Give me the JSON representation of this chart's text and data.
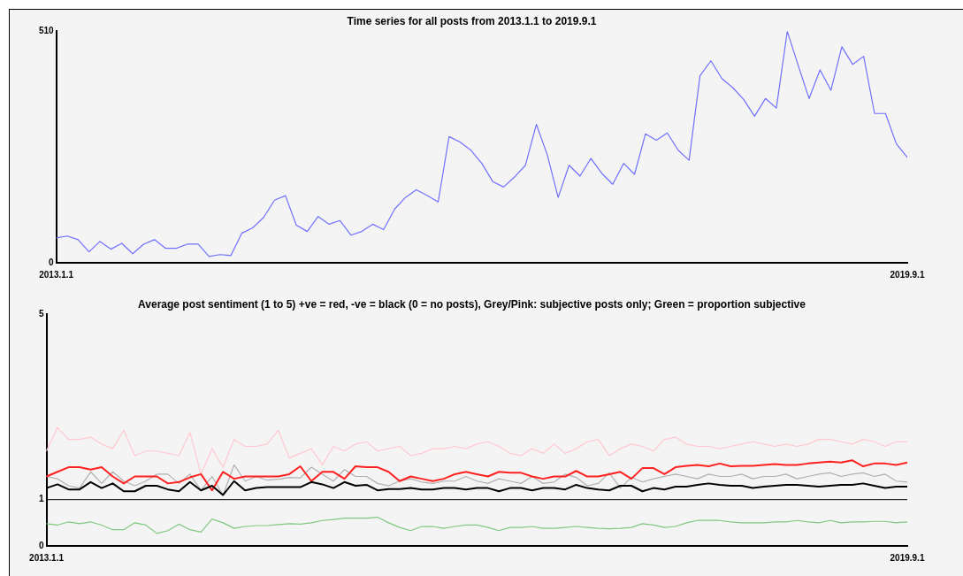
{
  "chart_data": [
    {
      "type": "line",
      "title": "Time series for all posts from 2013.1.1 to 2019.9.1",
      "categories": [
        "2013.1.1",
        null,
        null,
        null,
        null,
        null,
        null,
        null,
        null,
        null,
        null,
        null,
        null,
        null,
        null,
        null,
        null,
        null,
        null,
        null,
        null,
        null,
        null,
        null,
        null,
        null,
        null,
        null,
        null,
        null,
        null,
        null,
        null,
        null,
        null,
        null,
        null,
        null,
        null,
        null,
        null,
        null,
        null,
        null,
        null,
        null,
        null,
        null,
        null,
        null,
        null,
        null,
        null,
        null,
        null,
        null,
        null,
        null,
        null,
        null,
        null,
        null,
        null,
        null,
        null,
        null,
        null,
        null,
        null,
        null,
        null,
        null,
        null,
        null,
        null,
        null,
        null,
        null,
        "2019.9.1"
      ],
      "series": [
        {
          "color": "#7070ff",
          "values": [
            55,
            59,
            51,
            24,
            47,
            30,
            43,
            20,
            41,
            51,
            32,
            32,
            41,
            41,
            14,
            18,
            16,
            65,
            77,
            100,
            138,
            148,
            83,
            69,
            102,
            85,
            93,
            61,
            69,
            85,
            73,
            118,
            144,
            161,
            148,
            134,
            278,
            266,
            248,
            219,
            179,
            167,
            189,
            215,
            305,
            238,
            144,
            215,
            191,
            230,
            197,
            173,
            219,
            195,
            284,
            270,
            286,
            248,
            226,
            412,
            445,
            406,
            386,
            360,
            323,
            362,
            341,
            510,
            435,
            362,
            425,
            380,
            476,
            437,
            455,
            329,
            329,
            262,
            232
          ]
        }
      ],
      "ylim": [
        0,
        510
      ],
      "yticks": [
        0,
        510
      ],
      "grid": false,
      "legend": false,
      "marker": "none",
      "line_style": "solid"
    },
    {
      "type": "line",
      "title": "Average post sentiment (1 to 5) +ve = red, -ve = black (0 = no posts), Grey/Pink: subjective posts only; Green = proportion subjective",
      "categories": [
        "2013.1.1",
        null,
        null,
        null,
        null,
        null,
        null,
        null,
        null,
        null,
        null,
        null,
        null,
        null,
        null,
        null,
        null,
        null,
        null,
        null,
        null,
        null,
        null,
        null,
        null,
        null,
        null,
        null,
        null,
        null,
        null,
        null,
        null,
        null,
        null,
        null,
        null,
        null,
        null,
        null,
        null,
        null,
        null,
        null,
        null,
        null,
        null,
        null,
        null,
        null,
        null,
        null,
        null,
        null,
        null,
        null,
        null,
        null,
        null,
        null,
        null,
        null,
        null,
        null,
        null,
        null,
        null,
        null,
        null,
        null,
        null,
        null,
        null,
        null,
        null,
        null,
        null,
        null,
        "2019.9.1"
      ],
      "series": [
        {
          "color": "#ffc8d0",
          "values": [
            2.05,
            2.56,
            2.3,
            2.3,
            2.35,
            2.2,
            2.1,
            2.5,
            1.95,
            2.05,
            2.05,
            2.0,
            1.95,
            2.45,
            1.55,
            2.1,
            1.7,
            2.3,
            2.15,
            2.15,
            2.2,
            2.5,
            1.9,
            2.0,
            2.1,
            1.75,
            2.15,
            2.05,
            2.2,
            2.25,
            2.05,
            2.1,
            2.15,
            1.95,
            2.0,
            2.1,
            2.1,
            2.15,
            2.1,
            2.2,
            2.25,
            2.15,
            2.0,
            1.95,
            2.1,
            2.0,
            2.2,
            2.0,
            2.1,
            2.25,
            2.3,
            1.95,
            2.1,
            2.2,
            2.15,
            2.05,
            2.3,
            2.35,
            2.2,
            2.15,
            2.15,
            2.1,
            2.15,
            2.2,
            2.25,
            2.2,
            2.15,
            2.2,
            2.15,
            2.2,
            2.3,
            2.3,
            2.25,
            2.2,
            2.3,
            2.25,
            2.15,
            2.25,
            2.25
          ]
        },
        {
          "color": "#b0b0b0",
          "values": [
            1.5,
            1.45,
            1.3,
            1.25,
            1.6,
            1.35,
            1.6,
            1.4,
            1.3,
            1.4,
            1.55,
            1.55,
            1.35,
            1.55,
            1.2,
            1.5,
            1.1,
            1.75,
            1.4,
            1.5,
            1.42,
            1.44,
            1.48,
            1.47,
            1.7,
            1.55,
            1.4,
            1.65,
            1.5,
            1.5,
            1.35,
            1.3,
            1.4,
            1.45,
            1.38,
            1.35,
            1.4,
            1.4,
            1.5,
            1.4,
            1.35,
            1.45,
            1.4,
            1.35,
            1.5,
            1.35,
            1.38,
            1.55,
            1.48,
            1.3,
            1.35,
            1.58,
            1.25,
            1.48,
            1.38,
            1.45,
            1.5,
            1.55,
            1.5,
            1.45,
            1.55,
            1.5,
            1.5,
            1.55,
            1.45,
            1.5,
            1.5,
            1.55,
            1.45,
            1.5,
            1.55,
            1.58,
            1.5,
            1.55,
            1.58,
            1.5,
            1.55,
            1.4,
            1.38
          ]
        },
        {
          "color": "#ff2020",
          "values": [
            1.5,
            1.6,
            1.7,
            1.7,
            1.65,
            1.7,
            1.5,
            1.35,
            1.5,
            1.5,
            1.5,
            1.35,
            1.38,
            1.48,
            1.55,
            1.2,
            1.6,
            1.45,
            1.5,
            1.5,
            1.5,
            1.5,
            1.55,
            1.72,
            1.4,
            1.6,
            1.6,
            1.45,
            1.72,
            1.7,
            1.7,
            1.6,
            1.4,
            1.5,
            1.45,
            1.4,
            1.45,
            1.55,
            1.6,
            1.55,
            1.5,
            1.6,
            1.58,
            1.58,
            1.5,
            1.45,
            1.5,
            1.5,
            1.62,
            1.5,
            1.5,
            1.55,
            1.6,
            1.45,
            1.68,
            1.68,
            1.55,
            1.7,
            1.73,
            1.75,
            1.72,
            1.78,
            1.72,
            1.73,
            1.73,
            1.75,
            1.77,
            1.75,
            1.75,
            1.78,
            1.8,
            1.82,
            1.8,
            1.85,
            1.72,
            1.78,
            1.78,
            1.75,
            1.8
          ]
        },
        {
          "color": "#000000",
          "values": [
            1.25,
            1.33,
            1.22,
            1.22,
            1.38,
            1.25,
            1.35,
            1.18,
            1.18,
            1.3,
            1.3,
            1.22,
            1.18,
            1.38,
            1.2,
            1.3,
            1.1,
            1.4,
            1.2,
            1.25,
            1.27,
            1.27,
            1.27,
            1.27,
            1.38,
            1.33,
            1.25,
            1.38,
            1.3,
            1.32,
            1.2,
            1.23,
            1.23,
            1.25,
            1.22,
            1.22,
            1.25,
            1.25,
            1.22,
            1.25,
            1.25,
            1.18,
            1.25,
            1.25,
            1.2,
            1.25,
            1.25,
            1.22,
            1.32,
            1.25,
            1.22,
            1.2,
            1.3,
            1.3,
            1.18,
            1.25,
            1.22,
            1.28,
            1.28,
            1.32,
            1.35,
            1.32,
            1.3,
            1.3,
            1.25,
            1.28,
            1.3,
            1.32,
            1.32,
            1.3,
            1.28,
            1.3,
            1.32,
            1.32,
            1.35,
            1.3,
            1.25,
            1.28,
            1.28
          ]
        },
        {
          "color": "#80c880",
          "values": [
            0.48,
            0.45,
            0.52,
            0.48,
            0.52,
            0.45,
            0.35,
            0.35,
            0.5,
            0.45,
            0.27,
            0.33,
            0.47,
            0.35,
            0.3,
            0.58,
            0.5,
            0.38,
            0.42,
            0.44,
            0.44,
            0.46,
            0.48,
            0.47,
            0.5,
            0.55,
            0.57,
            0.6,
            0.6,
            0.6,
            0.62,
            0.5,
            0.4,
            0.33,
            0.42,
            0.42,
            0.38,
            0.42,
            0.45,
            0.45,
            0.4,
            0.33,
            0.4,
            0.4,
            0.42,
            0.38,
            0.38,
            0.4,
            0.42,
            0.4,
            0.38,
            0.37,
            0.38,
            0.4,
            0.48,
            0.45,
            0.4,
            0.42,
            0.5,
            0.55,
            0.55,
            0.55,
            0.52,
            0.5,
            0.5,
            0.5,
            0.52,
            0.52,
            0.55,
            0.52,
            0.5,
            0.55,
            0.5,
            0.52,
            0.52,
            0.53,
            0.53,
            0.5,
            0.52
          ]
        }
      ],
      "ylim": [
        0,
        5
      ],
      "yticks": [
        0,
        1,
        5
      ],
      "ref_lines": [
        {
          "axis": "y",
          "value": 1,
          "color": "#000000"
        }
      ],
      "grid": false,
      "legend": false,
      "marker": "none",
      "line_style": "solid"
    }
  ]
}
